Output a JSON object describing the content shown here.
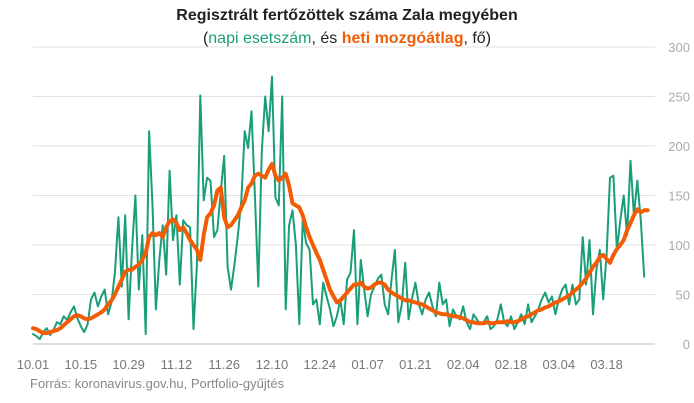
{
  "chart_data": {
    "type": "line",
    "title": "Regisztrált fertőzöttek száma Zala megyében",
    "subtitle": {
      "open": "(",
      "series1": "napi esetszám",
      "sep1": ", és ",
      "series2": "heti mozgóátlag",
      "sep2": ", fő)"
    },
    "source": "Forrás: koronavirus.gov.hu, Portfolio-gyűjtés",
    "x_tick_labels": [
      "10.01",
      "10.15",
      "10.29",
      "11.12",
      "11.26",
      "12.10",
      "12.24",
      "01.07",
      "01.21",
      "02.04",
      "02.18",
      "03.04",
      "03.18"
    ],
    "x_tick_days": [
      0,
      14,
      28,
      42,
      56,
      70,
      84,
      98,
      112,
      126,
      140,
      154,
      168
    ],
    "y_ticks": [
      0,
      50,
      100,
      150,
      200,
      250,
      300
    ],
    "ylim": [
      0,
      300
    ],
    "xlim": [
      0,
      181
    ],
    "grid": true,
    "series": [
      {
        "name": "napi esetszám",
        "color": "#1a9e7a",
        "values": [
          10,
          8,
          5,
          12,
          16,
          9,
          14,
          22,
          20,
          28,
          24,
          32,
          38,
          26,
          18,
          12,
          20,
          45,
          52,
          38,
          48,
          55,
          30,
          42,
          72,
          128,
          58,
          130,
          25,
          95,
          150,
          55,
          110,
          10,
          215,
          140,
          35,
          85,
          120,
          70,
          175,
          105,
          130,
          60,
          125,
          120,
          118,
          15,
          80,
          251,
          145,
          168,
          165,
          108,
          115,
          155,
          190,
          78,
          55,
          80,
          110,
          145,
          215,
          198,
          235,
          150,
          58,
          195,
          250,
          215,
          270,
          148,
          140,
          250,
          35,
          120,
          135,
          100,
          20,
          125,
          102,
          95,
          40,
          45,
          20,
          62,
          48,
          35,
          18,
          28,
          45,
          20,
          65,
          72,
          115,
          20,
          85,
          55,
          28,
          50,
          58,
          66,
          70,
          40,
          30,
          65,
          95,
          22,
          40,
          82,
          25,
          46,
          62,
          40,
          30,
          45,
          52,
          38,
          28,
          62,
          40,
          45,
          18,
          35,
          28,
          25,
          38,
          22,
          15,
          30,
          25,
          20,
          22,
          28,
          15,
          18,
          25,
          40,
          22,
          18,
          28,
          15,
          22,
          30,
          20,
          40,
          22,
          28,
          35,
          45,
          52,
          42,
          48,
          30,
          45,
          55,
          60,
          40,
          60,
          40,
          45,
          108,
          60,
          105,
          30,
          75,
          95,
          45,
          90,
          168,
          170,
          95,
          125,
          150,
          110,
          185,
          130,
          165,
          125,
          68
        ]
      },
      {
        "name": "heti mozgóátlag",
        "color": "#f25c05",
        "values": [
          16,
          15,
          13,
          11,
          11,
          12,
          13,
          14,
          16,
          19,
          22,
          25,
          28,
          29,
          28,
          26,
          25,
          26,
          28,
          30,
          32,
          35,
          40,
          44,
          50,
          58,
          65,
          73,
          75,
          75,
          78,
          80,
          85,
          92,
          108,
          112,
          110,
          112,
          108,
          118,
          124,
          126,
          122,
          115,
          118,
          112,
          105,
          100,
          95,
          85,
          110,
          128,
          132,
          140,
          155,
          158,
          128,
          118,
          120,
          125,
          130,
          138,
          145,
          158,
          162,
          170,
          172,
          170,
          168,
          176,
          182,
          170,
          165,
          168,
          172,
          160,
          142,
          140,
          138,
          130,
          118,
          108,
          100,
          92,
          85,
          75,
          65,
          55,
          48,
          42,
          44,
          48,
          52,
          56,
          60,
          60,
          62,
          58,
          56,
          57,
          60,
          62,
          62,
          60,
          55,
          52,
          50,
          48,
          46,
          44,
          44,
          43,
          42,
          41,
          40,
          38,
          36,
          34,
          32,
          31,
          30,
          30,
          29,
          28,
          28,
          27,
          26,
          24,
          22,
          22,
          21,
          21,
          21,
          22,
          21,
          21,
          22,
          22,
          22,
          23,
          22,
          22,
          23,
          25,
          27,
          28,
          30,
          32,
          34,
          35,
          37,
          38,
          40,
          42,
          43,
          45,
          47,
          49,
          52,
          55,
          58,
          62,
          66,
          72,
          78,
          82,
          88,
          90,
          86,
          82,
          90,
          96,
          100,
          105,
          115,
          122,
          130,
          136,
          133,
          135,
          135
        ]
      }
    ]
  }
}
